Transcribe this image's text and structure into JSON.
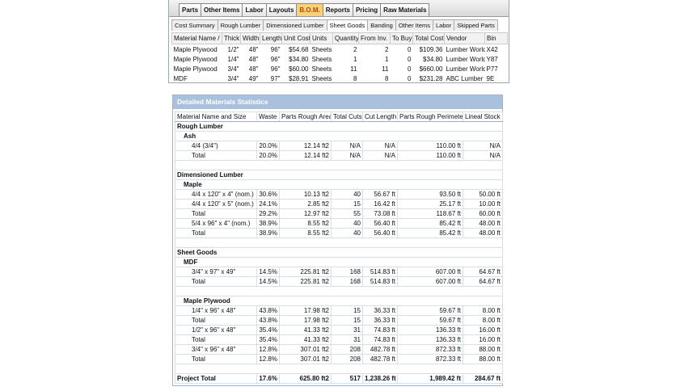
{
  "top_panel": {
    "tabs": [
      "Parts",
      "Other Items",
      "Labor",
      "Layouts",
      "B.O.M.",
      "Reports",
      "Pricing",
      "Raw Materials"
    ],
    "active_tab": 4,
    "subtabs": [
      "Cost Summary",
      "Rough Lumber",
      "Dimensioned Lumber",
      "Sheet Goods",
      "Banding",
      "Other Items",
      "Labor",
      "Skipped Parts"
    ],
    "active_subtab": 3,
    "table": {
      "columns": [
        "Material Name /",
        "Thick",
        "Width",
        "Length",
        "Unit Cost",
        "Units",
        "Quantity",
        "From Inv.",
        "To Buy",
        "Total Cost",
        "Vendor",
        "Bin"
      ],
      "rows": [
        [
          "Maple Plywood",
          "1/2\"",
          "48\"",
          "96\"",
          "$54.68",
          "Sheets",
          "2",
          "2",
          "0",
          "$109.36",
          "Lumber World",
          "X42"
        ],
        [
          "Maple Plywood",
          "1/4\"",
          "48\"",
          "96\"",
          "$34.80",
          "Sheets",
          "1",
          "1",
          "0",
          "$34.80",
          "Lumber World",
          "Y87"
        ],
        [
          "Maple Plywood",
          "3/4\"",
          "48\"",
          "96\"",
          "$60.00",
          "Sheets",
          "11",
          "11",
          "0",
          "$660.00",
          "Lumber World",
          "P77"
        ],
        [
          "MDF",
          "3/4\"",
          "49\"",
          "97\"",
          "$28.91",
          "Sheets",
          "8",
          "8",
          "0",
          "$231.28",
          "ABC Lumber",
          "9E"
        ]
      ]
    }
  },
  "detail_panel": {
    "title": "Detailed Materials Statistics",
    "columns": [
      "Material Name and Size",
      "Waste",
      "Parts Rough Area",
      "Total Cuts",
      "Cut Length",
      "Parts Rough Perimeter",
      "Lineal Stock"
    ],
    "sections": [
      {
        "title": "Rough Lumber",
        "subsections": [
          {
            "title": "Ash",
            "rows": [
              [
                "4/4 (3/4\")",
                "20.0%",
                "12.14 ft2",
                "N/A",
                "N/A",
                "110.00 ft",
                "N/A"
              ],
              [
                "Total",
                "20.0%",
                "12.14 ft2",
                "N/A",
                "N/A",
                "110.00 ft",
                "N/A"
              ]
            ]
          }
        ]
      },
      {
        "title": "Dimensioned Lumber",
        "subsections": [
          {
            "title": "Maple",
            "rows": [
              [
                "4/4 x 120\" x 4\" (nom.)",
                "30.6%",
                "10.13 ft2",
                "40",
                "56.67 ft",
                "93.50 ft",
                "50.00 ft"
              ],
              [
                "4/4 x 120\" x 5\" (nom.)",
                "24.1%",
                "2.85 ft2",
                "15",
                "16.42 ft",
                "25.17 ft",
                "10.00 ft"
              ],
              [
                "Total",
                "29.2%",
                "12.97 ft2",
                "55",
                "73.08 ft",
                "118.67 ft",
                "60.00 ft"
              ],
              [
                "5/4 x 96\" x 4\" (nom.)",
                "38.9%",
                "8.55 ft2",
                "40",
                "56.40 ft",
                "85.42 ft",
                "48.00 ft"
              ],
              [
                "Total",
                "38.9%",
                "8.55 ft2",
                "40",
                "56.40 ft",
                "85.42 ft",
                "48.00 ft"
              ]
            ]
          }
        ]
      },
      {
        "title": "Sheet Goods",
        "subsections": [
          {
            "title": "MDF",
            "rows": [
              [
                "3/4\" x 97\" x 49\"",
                "14.5%",
                "225.81 ft2",
                "168",
                "514.83 ft",
                "607.00 ft",
                "64.67 ft"
              ],
              [
                "Total",
                "14.5%",
                "225.81 ft2",
                "168",
                "514.83 ft",
                "607.00 ft",
                "64.67 ft"
              ]
            ]
          },
          {
            "title": "Maple Plywood",
            "rows": [
              [
                "1/4\" x 96\" x 48\"",
                "43.8%",
                "17.98 ft2",
                "15",
                "36.33 ft",
                "59.67 ft",
                "8.00 ft"
              ],
              [
                "Total",
                "43.8%",
                "17.98 ft2",
                "15",
                "36.33 ft",
                "59.67 ft",
                "8.00 ft"
              ],
              [
                "1/2\" x 96\" x 48\"",
                "35.4%",
                "41.33 ft2",
                "31",
                "74.83 ft",
                "136.33 ft",
                "16.00 ft"
              ],
              [
                "Total",
                "35.4%",
                "41.33 ft2",
                "31",
                "74.83 ft",
                "136.33 ft",
                "16.00 ft"
              ],
              [
                "3/4\" x 96\" x 48\"",
                "12.8%",
                "307.01 ft2",
                "208",
                "482.78 ft",
                "872.33 ft",
                "88.00 ft"
              ],
              [
                "Total",
                "12.8%",
                "307.01 ft2",
                "208",
                "482.78 ft",
                "872.33 ft",
                "88.00 ft"
              ]
            ]
          }
        ]
      }
    ],
    "project_total": [
      "Project Total",
      "17.6%",
      "625.80 ft2",
      "517",
      "1,238.26 ft",
      "1,989.42 ft",
      "284.67 ft"
    ]
  }
}
